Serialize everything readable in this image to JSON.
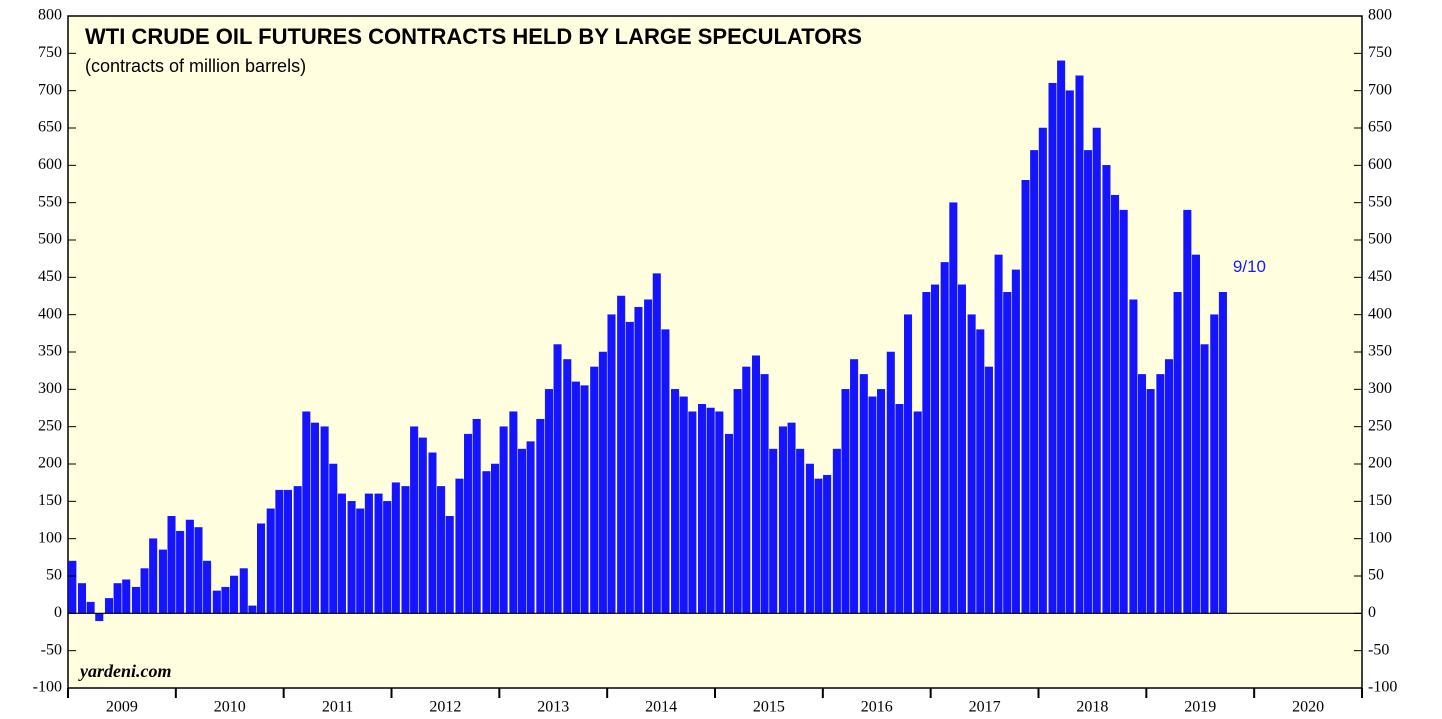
{
  "chart_data": {
    "type": "bar",
    "title": "WTI CRUDE OIL FUTURES CONTRACTS HELD BY LARGE SPECULATORS",
    "subtitle": "(contracts of million barrels)",
    "source": "yardeni.com",
    "annotation": "9/10",
    "color": "#1414ff",
    "background": "#ffffe0",
    "ylim": [
      -100,
      800
    ],
    "yticks": [
      -100,
      -50,
      0,
      50,
      100,
      150,
      200,
      250,
      300,
      350,
      400,
      450,
      500,
      550,
      600,
      650,
      700,
      750,
      800
    ],
    "xlim": [
      2009,
      2021
    ],
    "xticks": [
      2009,
      2010,
      2011,
      2012,
      2013,
      2014,
      2015,
      2016,
      2017,
      2018,
      2019,
      2020,
      2021
    ],
    "x_labels": [
      "2009",
      "2010",
      "2011",
      "2012",
      "2013",
      "2014",
      "2015",
      "2016",
      "2017",
      "2018",
      "2019",
      "2020"
    ],
    "x": [
      2009.04,
      2009.13,
      2009.21,
      2009.29,
      2009.38,
      2009.46,
      2009.54,
      2009.63,
      2009.71,
      2009.79,
      2009.88,
      2009.96,
      2010.04,
      2010.13,
      2010.21,
      2010.29,
      2010.38,
      2010.46,
      2010.54,
      2010.63,
      2010.71,
      2010.79,
      2010.88,
      2010.96,
      2011.04,
      2011.13,
      2011.21,
      2011.29,
      2011.38,
      2011.46,
      2011.54,
      2011.63,
      2011.71,
      2011.79,
      2011.88,
      2011.96,
      2012.04,
      2012.13,
      2012.21,
      2012.29,
      2012.38,
      2012.46,
      2012.54,
      2012.63,
      2012.71,
      2012.79,
      2012.88,
      2012.96,
      2013.04,
      2013.13,
      2013.21,
      2013.29,
      2013.38,
      2013.46,
      2013.54,
      2013.63,
      2013.71,
      2013.79,
      2013.88,
      2013.96,
      2014.04,
      2014.13,
      2014.21,
      2014.29,
      2014.38,
      2014.46,
      2014.54,
      2014.63,
      2014.71,
      2014.79,
      2014.88,
      2014.96,
      2015.04,
      2015.13,
      2015.21,
      2015.29,
      2015.38,
      2015.46,
      2015.54,
      2015.63,
      2015.71,
      2015.79,
      2015.88,
      2015.96,
      2016.04,
      2016.13,
      2016.21,
      2016.29,
      2016.38,
      2016.46,
      2016.54,
      2016.63,
      2016.71,
      2016.79,
      2016.88,
      2016.96,
      2017.04,
      2017.13,
      2017.21,
      2017.29,
      2017.38,
      2017.46,
      2017.54,
      2017.63,
      2017.71,
      2017.79,
      2017.88,
      2017.96,
      2018.04,
      2018.13,
      2018.21,
      2018.29,
      2018.38,
      2018.46,
      2018.54,
      2018.63,
      2018.71,
      2018.79,
      2018.88,
      2018.96,
      2019.04,
      2019.13,
      2019.21,
      2019.29,
      2019.38,
      2019.46,
      2019.54,
      2019.63,
      2019.71
    ],
    "values": [
      70,
      40,
      15,
      -10,
      20,
      40,
      45,
      35,
      60,
      100,
      85,
      130,
      110,
      125,
      115,
      70,
      30,
      35,
      50,
      60,
      10,
      120,
      140,
      165,
      165,
      170,
      270,
      255,
      250,
      200,
      160,
      150,
      140,
      160,
      160,
      150,
      175,
      170,
      250,
      235,
      215,
      170,
      130,
      180,
      240,
      260,
      190,
      200,
      250,
      270,
      220,
      230,
      260,
      300,
      360,
      340,
      310,
      305,
      330,
      350,
      400,
      425,
      390,
      410,
      420,
      455,
      380,
      300,
      290,
      270,
      280,
      275,
      270,
      240,
      300,
      330,
      345,
      320,
      220,
      250,
      255,
      220,
      200,
      180,
      185,
      220,
      300,
      340,
      320,
      290,
      300,
      350,
      280,
      400,
      270,
      430,
      440,
      470,
      550,
      440,
      400,
      380,
      330,
      480,
      430,
      460,
      580,
      620,
      650,
      710,
      740,
      700,
      720,
      620,
      650,
      600,
      560,
      540,
      420,
      320,
      300,
      320,
      340,
      430,
      540,
      480,
      360,
      400,
      430
    ]
  }
}
